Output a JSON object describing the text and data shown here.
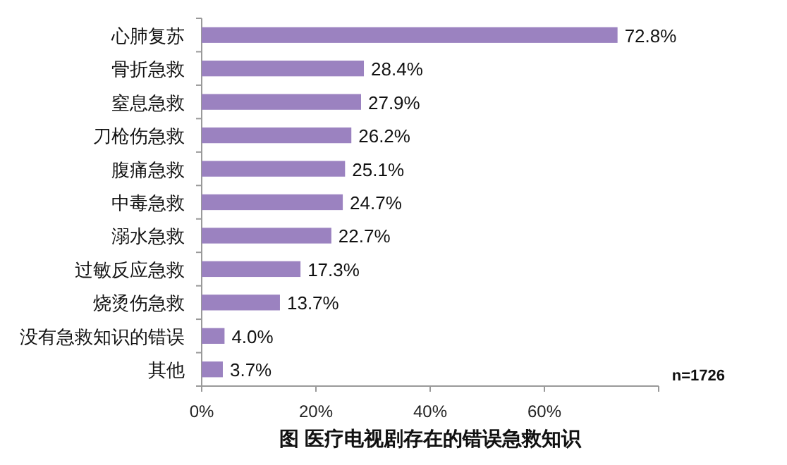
{
  "chart_data": {
    "type": "bar",
    "orientation": "horizontal",
    "xlabel": "图 医疗电视剧存在的错误急救知识",
    "categories": [
      "心肺复苏",
      "骨折急救",
      "窒息急救",
      "刀枪伤急救",
      "腹痛急救",
      "中毒急救",
      "溺水急救",
      "过敏反应急救",
      "烧烫伤急救",
      "没有急救知识的错误",
      "其他"
    ],
    "values": [
      72.8,
      28.4,
      27.9,
      26.2,
      25.1,
      24.7,
      22.7,
      17.3,
      13.7,
      4.0,
      3.7
    ],
    "value_labels": [
      "72.8%",
      "28.4%",
      "27.9%",
      "26.2%",
      "25.1%",
      "24.7%",
      "22.7%",
      "17.3%",
      "13.7%",
      "4.0%",
      "3.7%"
    ],
    "color": "#9b82c0",
    "xlim": [
      0,
      80
    ],
    "xticks": [
      {
        "value": 0,
        "label": "0%"
      },
      {
        "value": 20,
        "label": "20%"
      },
      {
        "value": 40,
        "label": "40%"
      },
      {
        "value": 60,
        "label": "60%"
      },
      {
        "value": 80,
        "label": null
      }
    ],
    "annotations": [
      "n=1726"
    ],
    "grid": false
  }
}
